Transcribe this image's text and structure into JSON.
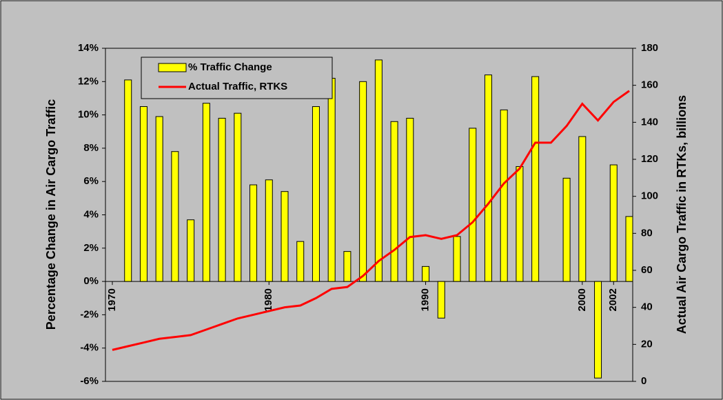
{
  "chart_data": {
    "type": "bar",
    "y_label": "Percentage Change in Air Cargo Traffic",
    "y2_label": "Actual Air Cargo Traffic in RTKs, billions",
    "xlim": [
      1969.56,
      2003.22
    ],
    "xticks": [
      1970,
      1980,
      1990,
      2000,
      2002
    ],
    "ylim": [
      -6,
      14
    ],
    "yticks": [
      {
        "value": -6,
        "label": "-6%"
      },
      {
        "value": -4,
        "label": "-4%"
      },
      {
        "value": -2,
        "label": "-2%"
      },
      {
        "value": 0,
        "label": "0%"
      },
      {
        "value": 2,
        "label": "2%"
      },
      {
        "value": 4,
        "label": "4%"
      },
      {
        "value": 6,
        "label": "6%"
      },
      {
        "value": 8,
        "label": "8%"
      },
      {
        "value": 10,
        "label": "10%"
      },
      {
        "value": 12,
        "label": "12%"
      },
      {
        "value": 14,
        "label": "14%"
      }
    ],
    "y2lim": [
      0,
      180
    ],
    "y2ticks": [
      0,
      20,
      40,
      60,
      80,
      100,
      120,
      140,
      160,
      180
    ],
    "legend": "upper left",
    "grid": false,
    "series": [
      {
        "name": "% Traffic Change",
        "type": "bar",
        "color": "#ffff00",
        "x": [
          1971,
          1972,
          1973,
          1974,
          1975,
          1976,
          1977,
          1978,
          1979,
          1980,
          1981,
          1982,
          1983,
          1984,
          1985,
          1986,
          1987,
          1988,
          1989,
          1990,
          1991,
          1992,
          1993,
          1994,
          1995,
          1996,
          1997,
          1998,
          1999,
          2000,
          2001,
          2002,
          2003
        ],
        "values": [
          12.1,
          10.5,
          9.9,
          7.8,
          3.7,
          10.7,
          9.8,
          10.1,
          5.8,
          6.1,
          5.4,
          2.4,
          10.5,
          12.2,
          1.8,
          12.0,
          13.3,
          9.6,
          9.8,
          0.9,
          -2.2,
          2.7,
          9.2,
          12.4,
          10.3,
          6.9,
          12.3,
          0,
          6.2,
          8.7,
          -5.8,
          7.0,
          3.9
        ]
      },
      {
        "name": "Actual Traffic, RTKS",
        "type": "line",
        "color": "#ff0000",
        "axis": "y2",
        "x": [
          1970,
          1971,
          1972,
          1973,
          1974,
          1975,
          1976,
          1977,
          1978,
          1979,
          1980,
          1981,
          1982,
          1983,
          1984,
          1985,
          1986,
          1987,
          1988,
          1989,
          1990,
          1991,
          1992,
          1993,
          1994,
          1995,
          1996,
          1997,
          1998,
          1999,
          2000,
          2001,
          2002,
          2003
        ],
        "values": [
          17,
          19,
          21,
          23,
          24,
          25,
          28,
          31,
          34,
          36,
          38,
          40,
          41,
          45,
          50,
          51,
          57,
          65,
          71,
          78,
          79,
          77,
          79,
          86,
          96,
          107,
          115,
          129,
          129,
          138,
          150,
          141,
          151,
          157
        ]
      }
    ]
  }
}
